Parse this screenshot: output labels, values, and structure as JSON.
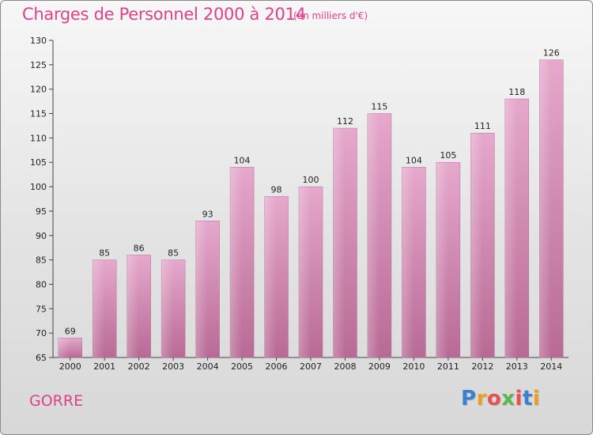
{
  "header": {
    "title": "Charges de Personnel 2000 à 2014",
    "subtitle": "(en milliers d'€)"
  },
  "footer": {
    "city": "GORRE",
    "logo_text": "Proxiti",
    "logo_colors": [
      "#3a7fd0",
      "#e8a020",
      "#e85050",
      "#58b848",
      "#e85050",
      "#3a7fd0",
      "#e8a020"
    ]
  },
  "chart_data": {
    "type": "bar",
    "categories": [
      "2000",
      "2001",
      "2002",
      "2003",
      "2004",
      "2005",
      "2006",
      "2007",
      "2008",
      "2009",
      "2010",
      "2011",
      "2012",
      "2013",
      "2014"
    ],
    "values": [
      69,
      85,
      86,
      85,
      93,
      104,
      98,
      100,
      112,
      115,
      104,
      105,
      111,
      118,
      126
    ],
    "title": "Charges de Personnel 2000 à 2014",
    "subtitle": "(en milliers d'€)",
    "xlabel": "",
    "ylabel": "",
    "ylim": [
      65,
      130
    ],
    "yticks": [
      65,
      70,
      75,
      80,
      85,
      90,
      95,
      100,
      105,
      110,
      115,
      120,
      125,
      130
    ],
    "grid": false,
    "bar_color": "#d88ab4",
    "show_data_labels": true
  }
}
